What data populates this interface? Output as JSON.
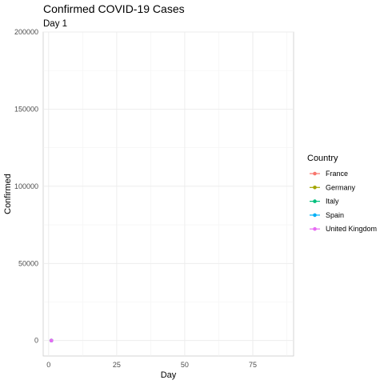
{
  "chart_data": {
    "type": "line",
    "title": "Confirmed COVID-19 Cases",
    "subtitle": "Day 1",
    "xlabel": "Day",
    "ylabel": "Confirmed",
    "xlim": [
      -2,
      90
    ],
    "ylim": [
      -10000,
      200000
    ],
    "x_ticks": [
      0,
      25,
      50,
      75
    ],
    "y_ticks": [
      0,
      50000,
      100000,
      150000,
      200000
    ],
    "grid": true,
    "legend_title": "Country",
    "legend_position": "right",
    "series": [
      {
        "name": "France",
        "color": "#F8766D",
        "x": [
          1
        ],
        "values": [
          0
        ]
      },
      {
        "name": "Germany",
        "color": "#A3A500",
        "x": [
          1
        ],
        "values": [
          0
        ]
      },
      {
        "name": "Italy",
        "color": "#00BF7D",
        "x": [
          1
        ],
        "values": [
          0
        ]
      },
      {
        "name": "Spain",
        "color": "#00B0F6",
        "x": [
          1
        ],
        "values": [
          0
        ]
      },
      {
        "name": "United Kingdom",
        "color": "#E76BF3",
        "x": [
          1
        ],
        "values": [
          0
        ]
      }
    ]
  }
}
